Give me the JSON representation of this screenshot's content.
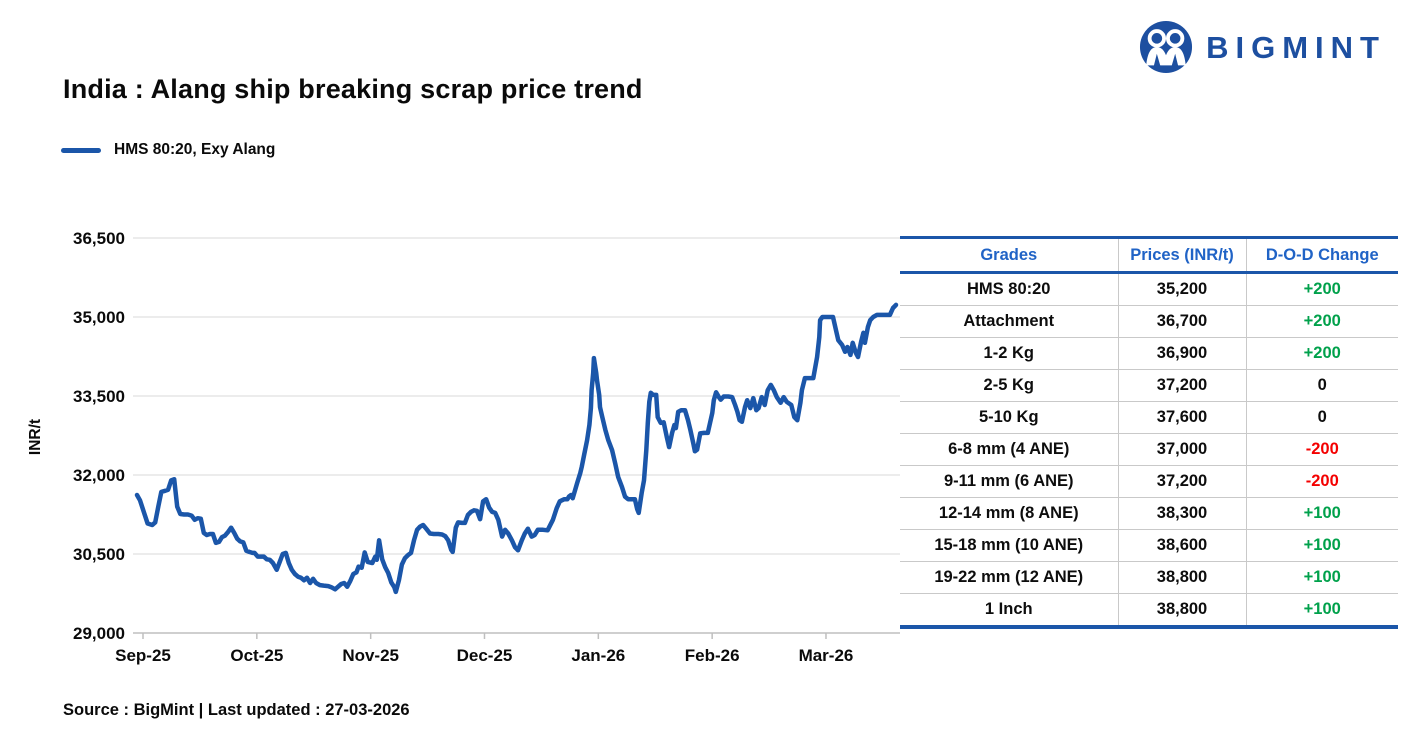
{
  "logo": {
    "text": "BIGMINT",
    "color": "#1d4fa0"
  },
  "title": "India : Alang ship breaking scrap price trend",
  "legend": {
    "label": "HMS 80:20, Exy Alang",
    "color": "#1b56a9"
  },
  "source_note": "Source : BigMint | Last updated : 27-03-2026",
  "chart_data": {
    "type": "line",
    "title": "India : Alang ship breaking scrap price trend",
    "series_name": "HMS 80:20, Exy Alang",
    "xlabel": "",
    "ylabel": "INR/t",
    "ylim": [
      29000,
      36500
    ],
    "ytick_values": [
      36500,
      35000,
      33500,
      32000,
      30500,
      29000
    ],
    "ytick_labels": [
      "36,500",
      "35,000",
      "33,500",
      "32,000",
      "30,500",
      "29,000"
    ],
    "xtick_labels": [
      "Sep-25",
      "Oct-25",
      "Nov-25",
      "Dec-25",
      "Jan-26",
      "Feb-26",
      "Mar-26"
    ],
    "grid": true,
    "legend_position": "top-left",
    "line_color": "#1b56a9",
    "points_note": "pairs [t,v]; t = percent of time axis from Sep-2025 to 27-Mar-2026, v = price in INR/t",
    "points": [
      [
        0,
        31620
      ],
      [
        0.4,
        31520
      ],
      [
        0.9,
        31300
      ],
      [
        1.4,
        31080
      ],
      [
        2,
        31050
      ],
      [
        2.4,
        31100
      ],
      [
        2.8,
        31400
      ],
      [
        3.2,
        31680
      ],
      [
        3.7,
        31700
      ],
      [
        4.1,
        31720
      ],
      [
        4.5,
        31900
      ],
      [
        4.9,
        31920
      ],
      [
        5.3,
        31400
      ],
      [
        5.7,
        31260
      ],
      [
        6.2,
        31250
      ],
      [
        6.7,
        31250
      ],
      [
        7.2,
        31230
      ],
      [
        7.6,
        31150
      ],
      [
        8,
        31180
      ],
      [
        8.4,
        31170
      ],
      [
        8.8,
        30900
      ],
      [
        9.2,
        30860
      ],
      [
        9.6,
        30880
      ],
      [
        10,
        30880
      ],
      [
        10.4,
        30710
      ],
      [
        10.8,
        30730
      ],
      [
        11.2,
        30820
      ],
      [
        11.6,
        30850
      ],
      [
        12,
        30920
      ],
      [
        12.4,
        31000
      ],
      [
        12.8,
        30900
      ],
      [
        13.2,
        30790
      ],
      [
        13.6,
        30740
      ],
      [
        14,
        30720
      ],
      [
        14.4,
        30560
      ],
      [
        14.8,
        30540
      ],
      [
        15.2,
        30520
      ],
      [
        15.5,
        30520
      ],
      [
        15.9,
        30450
      ],
      [
        16.3,
        30450
      ],
      [
        16.7,
        30450
      ],
      [
        17.1,
        30400
      ],
      [
        17.5,
        30390
      ],
      [
        17.9,
        30330
      ],
      [
        18.4,
        30200
      ],
      [
        18.8,
        30350
      ],
      [
        19.2,
        30500
      ],
      [
        19.6,
        30520
      ],
      [
        20,
        30330
      ],
      [
        20.4,
        30200
      ],
      [
        20.8,
        30120
      ],
      [
        21.2,
        30070
      ],
      [
        21.6,
        30050
      ],
      [
        22,
        30000
      ],
      [
        22.4,
        30050
      ],
      [
        22.8,
        29950
      ],
      [
        23.2,
        30030
      ],
      [
        23.6,
        29950
      ],
      [
        24.1,
        29910
      ],
      [
        24.6,
        29900
      ],
      [
        25.2,
        29890
      ],
      [
        25.6,
        29870
      ],
      [
        26.1,
        29830
      ],
      [
        26.5,
        29880
      ],
      [
        26.9,
        29930
      ],
      [
        27.3,
        29950
      ],
      [
        27.7,
        29880
      ],
      [
        28.1,
        29990
      ],
      [
        28.5,
        30120
      ],
      [
        28.9,
        30150
      ],
      [
        29.2,
        30260
      ],
      [
        29.6,
        30240
      ],
      [
        30,
        30530
      ],
      [
        30.4,
        30350
      ],
      [
        31,
        30330
      ],
      [
        31.4,
        30450
      ],
      [
        31.6,
        30390
      ],
      [
        31.9,
        30760
      ],
      [
        32.3,
        30400
      ],
      [
        32.7,
        30250
      ],
      [
        33.1,
        30140
      ],
      [
        33.5,
        29960
      ],
      [
        33.9,
        29870
      ],
      [
        34.1,
        29780
      ],
      [
        34.5,
        30000
      ],
      [
        34.9,
        30300
      ],
      [
        35.3,
        30420
      ],
      [
        35.7,
        30480
      ],
      [
        36.1,
        30520
      ],
      [
        36.5,
        30760
      ],
      [
        36.9,
        30960
      ],
      [
        37.3,
        31020
      ],
      [
        37.7,
        31050
      ],
      [
        38.1,
        30980
      ],
      [
        38.6,
        30890
      ],
      [
        39.1,
        30880
      ],
      [
        39.7,
        30880
      ],
      [
        40.2,
        30870
      ],
      [
        40.6,
        30840
      ],
      [
        41,
        30760
      ],
      [
        41.4,
        30580
      ],
      [
        41.6,
        30540
      ],
      [
        42,
        31000
      ],
      [
        42.3,
        31100
      ],
      [
        42.8,
        31090
      ],
      [
        43.2,
        31090
      ],
      [
        43.6,
        31240
      ],
      [
        44,
        31300
      ],
      [
        44.4,
        31330
      ],
      [
        44.8,
        31320
      ],
      [
        45.2,
        31160
      ],
      [
        45.6,
        31500
      ],
      [
        46,
        31540
      ],
      [
        46.4,
        31380
      ],
      [
        46.8,
        31300
      ],
      [
        47.2,
        31280
      ],
      [
        47.6,
        31150
      ],
      [
        48.1,
        30830
      ],
      [
        48.5,
        30960
      ],
      [
        48.9,
        30890
      ],
      [
        49.4,
        30760
      ],
      [
        49.8,
        30630
      ],
      [
        50.2,
        30570
      ],
      [
        50.7,
        30760
      ],
      [
        51.1,
        30890
      ],
      [
        51.5,
        30980
      ],
      [
        52,
        30830
      ],
      [
        52.4,
        30860
      ],
      [
        52.8,
        30960
      ],
      [
        53.5,
        30960
      ],
      [
        54.1,
        30950
      ],
      [
        54.8,
        31150
      ],
      [
        55.3,
        31370
      ],
      [
        55.7,
        31500
      ],
      [
        56.3,
        31540
      ],
      [
        56.7,
        31540
      ],
      [
        56.9,
        31590
      ],
      [
        57.2,
        31620
      ],
      [
        57.4,
        31560
      ],
      [
        58,
        31850
      ],
      [
        58.4,
        32040
      ],
      [
        58.6,
        32160
      ],
      [
        58.9,
        32380
      ],
      [
        59.3,
        32660
      ],
      [
        59.6,
        32950
      ],
      [
        59.8,
        33270
      ],
      [
        59.9,
        33610
      ],
      [
        60.1,
        33940
      ],
      [
        60.2,
        34220
      ],
      [
        60.5,
        33940
      ],
      [
        60.6,
        33800
      ],
      [
        60.9,
        33520
      ],
      [
        61,
        33290
      ],
      [
        61.3,
        33100
      ],
      [
        61.7,
        32860
      ],
      [
        62.1,
        32660
      ],
      [
        62.6,
        32470
      ],
      [
        63,
        32220
      ],
      [
        63.4,
        31960
      ],
      [
        63.9,
        31770
      ],
      [
        64.3,
        31590
      ],
      [
        64.7,
        31540
      ],
      [
        65.2,
        31540
      ],
      [
        65.6,
        31540
      ],
      [
        65.9,
        31350
      ],
      [
        66.1,
        31280
      ],
      [
        66.5,
        31660
      ],
      [
        66.8,
        31900
      ],
      [
        67.1,
        32470
      ],
      [
        67.3,
        32990
      ],
      [
        67.5,
        33390
      ],
      [
        67.7,
        33560
      ],
      [
        68,
        33520
      ],
      [
        68.4,
        33520
      ],
      [
        68.6,
        33100
      ],
      [
        69,
        32990
      ],
      [
        69.4,
        33000
      ],
      [
        69.8,
        32720
      ],
      [
        70.1,
        32530
      ],
      [
        70.5,
        32800
      ],
      [
        70.8,
        32950
      ],
      [
        71,
        32890
      ],
      [
        71.3,
        33200
      ],
      [
        71.7,
        33230
      ],
      [
        72.2,
        33230
      ],
      [
        72.6,
        33040
      ],
      [
        72.9,
        32860
      ],
      [
        73.3,
        32600
      ],
      [
        73.5,
        32450
      ],
      [
        73.8,
        32480
      ],
      [
        74.2,
        32790
      ],
      [
        74.7,
        32800
      ],
      [
        75.2,
        32800
      ],
      [
        75.8,
        33180
      ],
      [
        76,
        33420
      ],
      [
        76.3,
        33570
      ],
      [
        76.7,
        33470
      ],
      [
        76.9,
        33430
      ],
      [
        77.3,
        33490
      ],
      [
        77.9,
        33490
      ],
      [
        78.4,
        33480
      ],
      [
        78.8,
        33330
      ],
      [
        79.1,
        33200
      ],
      [
        79.4,
        33040
      ],
      [
        79.7,
        33010
      ],
      [
        80.1,
        33290
      ],
      [
        80.4,
        33420
      ],
      [
        80.8,
        33270
      ],
      [
        81.2,
        33460
      ],
      [
        81.6,
        33230
      ],
      [
        81.9,
        33270
      ],
      [
        82.3,
        33480
      ],
      [
        82.7,
        33330
      ],
      [
        83.1,
        33610
      ],
      [
        83.5,
        33710
      ],
      [
        83.9,
        33610
      ],
      [
        84.3,
        33480
      ],
      [
        84.8,
        33370
      ],
      [
        85.2,
        33480
      ],
      [
        85.6,
        33390
      ],
      [
        86.2,
        33330
      ],
      [
        86.6,
        33100
      ],
      [
        87,
        33040
      ],
      [
        87.4,
        33370
      ],
      [
        87.6,
        33610
      ],
      [
        88,
        33840
      ],
      [
        88.5,
        33840
      ],
      [
        89.1,
        33840
      ],
      [
        89.6,
        34240
      ],
      [
        89.9,
        34620
      ],
      [
        90,
        34940
      ],
      [
        90.3,
        35000
      ],
      [
        90.8,
        35000
      ],
      [
        91.3,
        35000
      ],
      [
        91.7,
        35000
      ],
      [
        92.1,
        34750
      ],
      [
        92.4,
        34560
      ],
      [
        92.9,
        34470
      ],
      [
        93.3,
        34340
      ],
      [
        93.6,
        34430
      ],
      [
        94,
        34280
      ],
      [
        94.3,
        34510
      ],
      [
        94.7,
        34320
      ],
      [
        95,
        34240
      ],
      [
        95.4,
        34530
      ],
      [
        95.7,
        34700
      ],
      [
        95.9,
        34510
      ],
      [
        96.3,
        34810
      ],
      [
        96.6,
        34940
      ],
      [
        97,
        35000
      ],
      [
        97.5,
        35040
      ],
      [
        98,
        35040
      ],
      [
        98.7,
        35040
      ],
      [
        99.2,
        35040
      ],
      [
        99.6,
        35170
      ],
      [
        100,
        35230
      ]
    ]
  },
  "table": {
    "headers": [
      "Grades",
      "Prices (INR/t)",
      "D-O-D Change"
    ],
    "header_color": "#2063c6",
    "up_color": "#00a14b",
    "down_color": "#f40000",
    "zero_color": "#0d0d0d",
    "rows": [
      {
        "grade": "HMS 80:20",
        "price": "35,200",
        "change": "+200"
      },
      {
        "grade": "Attachment",
        "price": "36,700",
        "change": "+200"
      },
      {
        "grade": "1-2 Kg",
        "price": "36,900",
        "change": "+200"
      },
      {
        "grade": "2-5 Kg",
        "price": "37,200",
        "change": "0"
      },
      {
        "grade": "5-10 Kg",
        "price": "37,600",
        "change": "0"
      },
      {
        "grade": "6-8 mm (4 ANE)",
        "price": "37,000",
        "change": "-200"
      },
      {
        "grade": "9-11 mm (6 ANE)",
        "price": "37,200",
        "change": "-200"
      },
      {
        "grade": "12-14 mm (8 ANE)",
        "price": "38,300",
        "change": "+100"
      },
      {
        "grade": "15-18 mm (10 ANE)",
        "price": "38,600",
        "change": "+100"
      },
      {
        "grade": "19-22 mm (12 ANE)",
        "price": "38,800",
        "change": "+100"
      },
      {
        "grade": "1 Inch",
        "price": "38,800",
        "change": "+100"
      }
    ]
  }
}
